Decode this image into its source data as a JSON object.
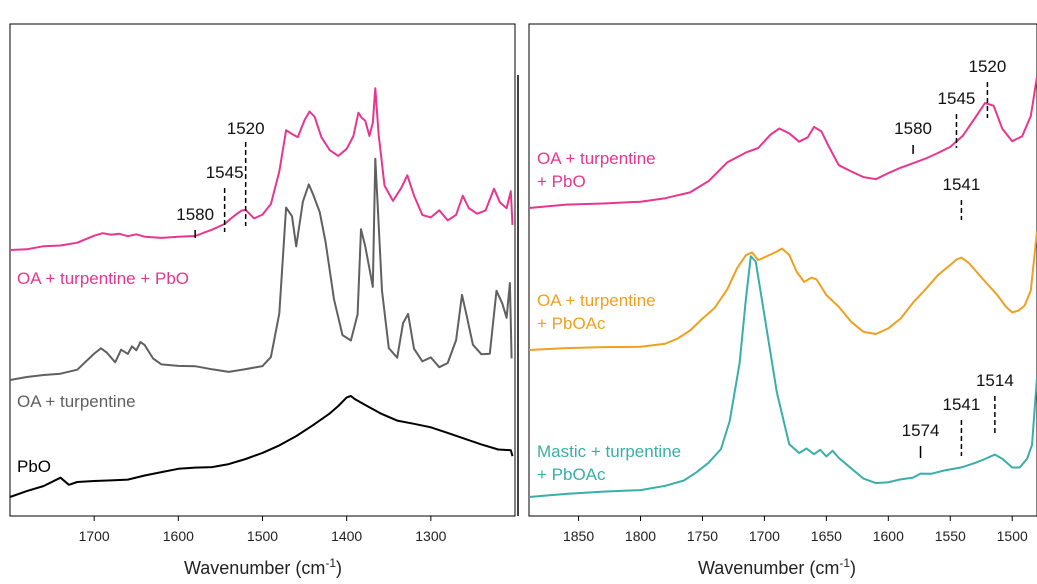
{
  "chart_data": [
    {
      "type": "line",
      "xlabel": "Wavenumber (cm-1)",
      "xlim": [
        1800,
        1200
      ],
      "xticks": [
        1700,
        1600,
        1500,
        1400,
        1300
      ],
      "grid": false,
      "series": [
        {
          "name": "OA + turpentine + PbO",
          "color": "#e8368f",
          "x": [
            1800,
            1780,
            1760,
            1740,
            1720,
            1700,
            1690,
            1680,
            1670,
            1660,
            1650,
            1640,
            1620,
            1600,
            1580,
            1560,
            1545,
            1535,
            1525,
            1520,
            1510,
            1500,
            1490,
            1480,
            1472,
            1465,
            1458,
            1450,
            1444,
            1438,
            1430,
            1420,
            1410,
            1400,
            1392,
            1386,
            1382,
            1378,
            1373,
            1369,
            1366,
            1362,
            1355,
            1345,
            1335,
            1328,
            1320,
            1310,
            1300,
            1290,
            1280,
            1270,
            1262,
            1255,
            1245,
            1235,
            1225,
            1218,
            1210,
            1205,
            1203
          ],
          "y": [
            0.0,
            0.0,
            0.02,
            0.03,
            0.05,
            0.09,
            0.1,
            0.09,
            0.1,
            0.09,
            0.1,
            0.08,
            0.07,
            0.08,
            0.09,
            0.13,
            0.16,
            0.2,
            0.24,
            0.25,
            0.2,
            0.22,
            0.28,
            0.48,
            0.74,
            0.72,
            0.7,
            0.8,
            0.85,
            0.82,
            0.7,
            0.62,
            0.58,
            0.62,
            0.7,
            0.85,
            0.82,
            0.8,
            0.7,
            0.78,
            1.0,
            0.72,
            0.4,
            0.3,
            0.38,
            0.46,
            0.34,
            0.22,
            0.2,
            0.24,
            0.18,
            0.22,
            0.34,
            0.26,
            0.22,
            0.24,
            0.38,
            0.3,
            0.26,
            0.36,
            0.15
          ]
        },
        {
          "name": "OA + turpentine",
          "color": "#606060",
          "x": [
            1800,
            1780,
            1760,
            1740,
            1720,
            1700,
            1692,
            1685,
            1675,
            1668,
            1660,
            1655,
            1650,
            1645,
            1640,
            1630,
            1620,
            1600,
            1580,
            1560,
            1540,
            1520,
            1500,
            1490,
            1480,
            1472,
            1465,
            1460,
            1452,
            1445,
            1440,
            1432,
            1425,
            1415,
            1405,
            1395,
            1387,
            1383,
            1378,
            1373,
            1369,
            1366,
            1363,
            1358,
            1350,
            1340,
            1333,
            1327,
            1320,
            1310,
            1300,
            1290,
            1280,
            1270,
            1263,
            1257,
            1250,
            1240,
            1230,
            1222,
            1215,
            1210,
            1206,
            1204
          ],
          "y": [
            0.0,
            0.01,
            0.02,
            0.03,
            0.05,
            0.12,
            0.14,
            0.12,
            0.08,
            0.14,
            0.12,
            0.15,
            0.13,
            0.17,
            0.16,
            0.1,
            0.07,
            0.06,
            0.06,
            0.05,
            0.04,
            0.05,
            0.06,
            0.1,
            0.3,
            0.78,
            0.74,
            0.6,
            0.8,
            0.88,
            0.84,
            0.76,
            0.62,
            0.36,
            0.2,
            0.18,
            0.3,
            0.68,
            0.6,
            0.5,
            0.42,
            1.0,
            0.78,
            0.4,
            0.14,
            0.1,
            0.26,
            0.3,
            0.14,
            0.08,
            0.1,
            0.06,
            0.08,
            0.18,
            0.38,
            0.28,
            0.16,
            0.12,
            0.12,
            0.4,
            0.34,
            0.28,
            0.44,
            0.1
          ]
        },
        {
          "name": "PbO",
          "color": "#000000",
          "x": [
            1800,
            1780,
            1760,
            1740,
            1730,
            1720,
            1700,
            1680,
            1660,
            1640,
            1620,
            1600,
            1580,
            1560,
            1540,
            1520,
            1500,
            1480,
            1460,
            1440,
            1420,
            1410,
            1400,
            1395,
            1390,
            1380,
            1360,
            1340,
            1320,
            1300,
            1280,
            1260,
            1240,
            1220,
            1205,
            1203
          ],
          "y": [
            0.0,
            0.06,
            0.1,
            0.15,
            0.08,
            0.1,
            0.12,
            0.14,
            0.15,
            0.17,
            0.18,
            0.2,
            0.22,
            0.24,
            0.27,
            0.3,
            0.33,
            0.38,
            0.46,
            0.56,
            0.66,
            0.71,
            0.76,
            0.76,
            0.74,
            0.72,
            0.66,
            0.6,
            0.56,
            0.52,
            0.48,
            0.45,
            0.42,
            0.38,
            0.36,
            0.3
          ]
        }
      ],
      "annotations": [
        {
          "label": "1580",
          "x": 1580
        },
        {
          "label": "1545",
          "x": 1545
        },
        {
          "label": "1520",
          "x": 1520
        }
      ]
    },
    {
      "type": "line",
      "xlabel": "Wavenumber (cm-1)",
      "xlim": [
        1890,
        1480
      ],
      "xticks": [
        1850,
        1800,
        1750,
        1700,
        1650,
        1600,
        1550,
        1500
      ],
      "grid": false,
      "series": [
        {
          "name": "OA + turpentine + PbO",
          "color": "#e8368f",
          "x": [
            1890,
            1860,
            1830,
            1800,
            1780,
            1760,
            1745,
            1730,
            1715,
            1705,
            1695,
            1688,
            1680,
            1672,
            1665,
            1660,
            1654,
            1648,
            1640,
            1630,
            1620,
            1610,
            1600,
            1590,
            1580,
            1570,
            1560,
            1550,
            1540,
            1530,
            1522,
            1515,
            1508,
            1500,
            1492,
            1485,
            1480
          ],
          "y": [
            0.0,
            0.02,
            0.03,
            0.05,
            0.08,
            0.12,
            0.2,
            0.34,
            0.42,
            0.46,
            0.56,
            0.6,
            0.56,
            0.5,
            0.54,
            0.62,
            0.58,
            0.46,
            0.32,
            0.28,
            0.24,
            0.22,
            0.26,
            0.3,
            0.34,
            0.38,
            0.42,
            0.46,
            0.54,
            0.68,
            0.8,
            0.78,
            0.6,
            0.5,
            0.54,
            0.7,
            1.0
          ]
        },
        {
          "name": "OA + turpentine + PbOAc",
          "color": "#f0a020",
          "x": [
            1890,
            1860,
            1830,
            1800,
            1780,
            1770,
            1760,
            1750,
            1740,
            1730,
            1722,
            1715,
            1710,
            1705,
            1698,
            1690,
            1686,
            1680,
            1674,
            1668,
            1662,
            1658,
            1650,
            1640,
            1630,
            1620,
            1610,
            1600,
            1590,
            1580,
            1570,
            1560,
            1550,
            1545,
            1541,
            1535,
            1528,
            1520,
            1512,
            1505,
            1500,
            1495,
            1490,
            1485,
            1480
          ],
          "y": [
            0.0,
            0.01,
            0.02,
            0.03,
            0.06,
            0.1,
            0.16,
            0.26,
            0.36,
            0.52,
            0.7,
            0.8,
            0.82,
            0.76,
            0.8,
            0.84,
            0.86,
            0.8,
            0.66,
            0.58,
            0.62,
            0.6,
            0.46,
            0.36,
            0.24,
            0.16,
            0.14,
            0.18,
            0.26,
            0.4,
            0.52,
            0.64,
            0.72,
            0.76,
            0.78,
            0.74,
            0.66,
            0.56,
            0.46,
            0.36,
            0.32,
            0.34,
            0.38,
            0.5,
            1.0
          ]
        },
        {
          "name": "Mastic + turpentine + PbOAc",
          "color": "#3aaea8",
          "x": [
            1890,
            1860,
            1830,
            1800,
            1780,
            1765,
            1755,
            1745,
            1735,
            1728,
            1720,
            1715,
            1711,
            1707,
            1700,
            1690,
            1680,
            1672,
            1666,
            1660,
            1655,
            1650,
            1645,
            1640,
            1630,
            1620,
            1610,
            1600,
            1590,
            1580,
            1574,
            1565,
            1555,
            1541,
            1530,
            1522,
            1514,
            1508,
            1500,
            1494,
            1488,
            1484,
            1480
          ],
          "y": [
            0.0,
            0.01,
            0.02,
            0.03,
            0.05,
            0.07,
            0.1,
            0.14,
            0.2,
            0.32,
            0.56,
            0.82,
            1.0,
            0.98,
            0.76,
            0.44,
            0.22,
            0.18,
            0.2,
            0.18,
            0.2,
            0.17,
            0.19,
            0.16,
            0.12,
            0.08,
            0.06,
            0.06,
            0.07,
            0.08,
            0.1,
            0.1,
            0.11,
            0.12,
            0.14,
            0.16,
            0.18,
            0.16,
            0.12,
            0.12,
            0.16,
            0.22,
            0.5
          ]
        }
      ],
      "annotations": [
        {
          "label": "1580",
          "x": 1580
        },
        {
          "label": "1545",
          "x": 1545
        },
        {
          "label": "1520",
          "x": 1520
        },
        {
          "label": "1541",
          "x": 1541
        },
        {
          "label": "1574",
          "x": 1574
        },
        {
          "label": "1541",
          "x": 1541
        },
        {
          "label": "1514",
          "x": 1514
        }
      ]
    }
  ]
}
